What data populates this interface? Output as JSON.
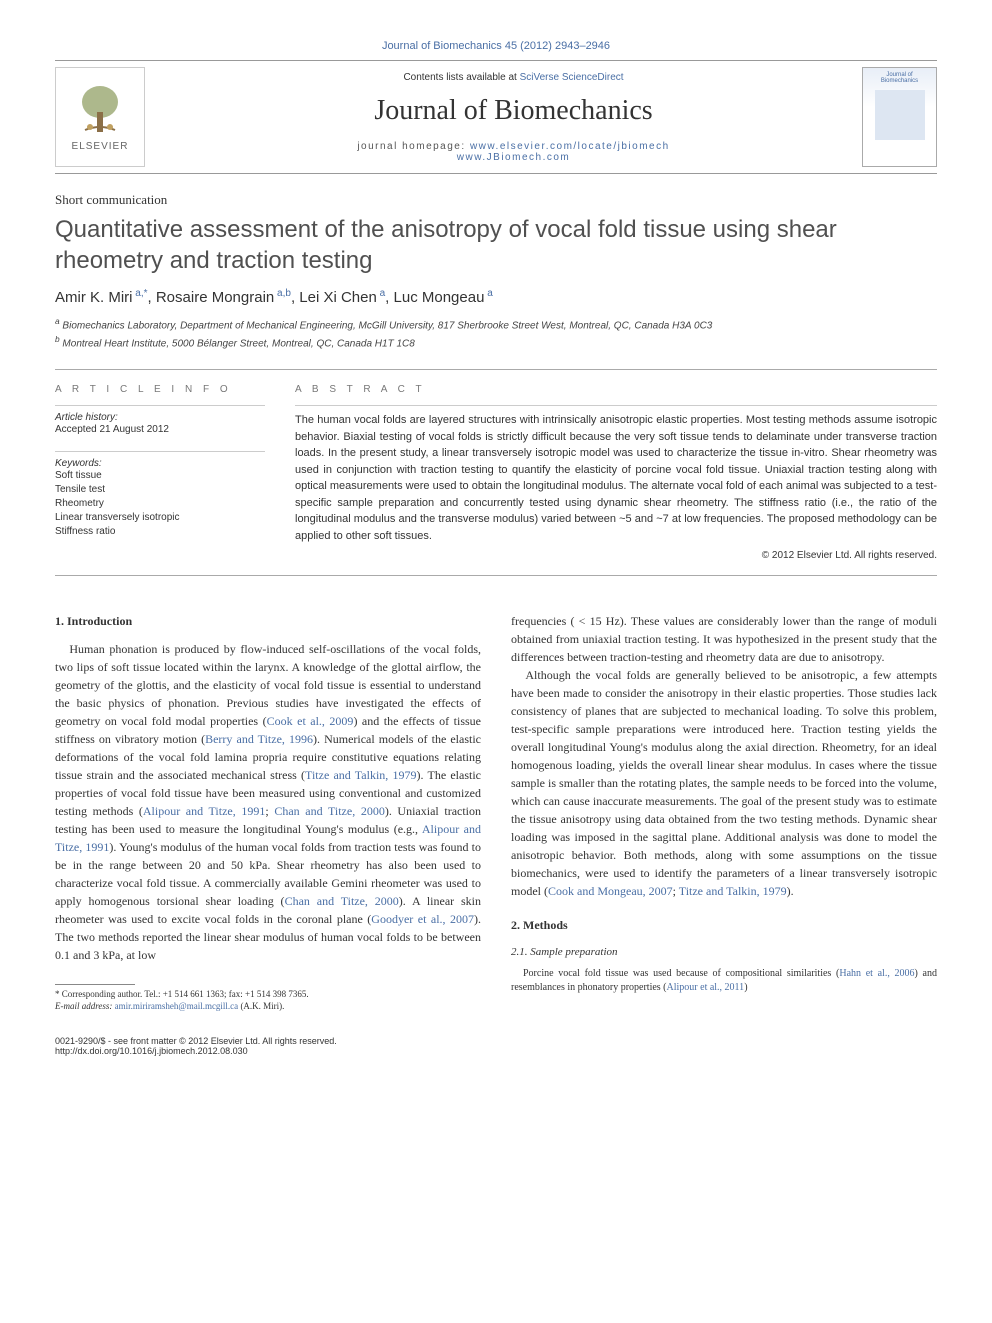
{
  "journal_ref": {
    "prefix": "Journal of Biomechanics 45 (2012) 2943–2946",
    "link_text": "Journal of Biomechanics 45 (2012) 2943–2946"
  },
  "header": {
    "contents_prefix": "Contents lists available at ",
    "contents_link": "SciVerse ScienceDirect",
    "journal_name": "Journal of Biomechanics",
    "homepage_label": "journal homepage: ",
    "homepage_url1": "www.elsevier.com/locate/jbiomech",
    "homepage_url2": "www.JBiomech.com",
    "elsevier_label": "ELSEVIER",
    "cover_title": "Journal of Biomechanics"
  },
  "article": {
    "type": "Short communication",
    "title": "Quantitative assessment of the anisotropy of vocal fold tissue using shear rheometry and traction testing",
    "authors_html": "Amir K. Miri<sup> a,*</sup>, Rosaire Mongrain<sup> a,b</sup>, Lei Xi Chen<sup> a</sup>, Luc Mongeau<sup> a</sup>",
    "affiliations": [
      "Biomechanics Laboratory, Department of Mechanical Engineering, McGill University, 817 Sherbrooke Street West, Montreal, QC, Canada H3A 0C3",
      "Montreal Heart Institute, 5000 Bélanger Street, Montreal, QC, Canada H1T 1C8"
    ]
  },
  "info": {
    "heading": "A R T I C L E  I N F O",
    "history_label": "Article history:",
    "history_text": "Accepted 21 August 2012",
    "keywords_label": "Keywords:",
    "keywords": [
      "Soft tissue",
      "Tensile test",
      "Rheometry",
      "Linear transversely isotropic",
      "Stiffness ratio"
    ]
  },
  "abstract": {
    "heading": "A B S T R A C T",
    "text": "The human vocal folds are layered structures with intrinsically anisotropic elastic properties. Most testing methods assume isotropic behavior. Biaxial testing of vocal folds is strictly difficult because the very soft tissue tends to delaminate under transverse traction loads. In the present study, a linear transversely isotropic model was used to characterize the tissue in-vitro. Shear rheometry was used in conjunction with traction testing to quantify the elasticity of porcine vocal fold tissue. Uniaxial traction testing along with optical measurements were used to obtain the longitudinal modulus. The alternate vocal fold of each animal was subjected to a test-specific sample preparation and concurrently tested using dynamic shear rheometry. The stiffness ratio (i.e., the ratio of the longitudinal modulus and the transverse modulus) varied between ~5 and ~7 at low frequencies. The proposed methodology can be applied to other soft tissues.",
    "copyright": "© 2012 Elsevier Ltd. All rights reserved."
  },
  "sections": {
    "s1_heading": "1.  Introduction",
    "s1_p1a": "Human phonation is produced by flow-induced self-oscillations of the vocal folds, two lips of soft tissue located within the larynx. A knowledge of the glottal airflow, the geometry of the glottis, and the elasticity of vocal fold tissue is essential to understand the basic physics of phonation. Previous studies have investigated the effects of geometry on vocal fold modal properties (",
    "s1_c1": "Cook et al., 2009",
    "s1_p1b": ") and the effects of tissue stiffness on vibratory motion (",
    "s1_c2": "Berry and Titze, 1996",
    "s1_p1c": "). Numerical models of the elastic deformations of the vocal fold lamina propria require constitutive equations relating tissue strain and the associated mechanical stress (",
    "s1_c3": "Titze and Talkin, 1979",
    "s1_p1d": "). The elastic properties of vocal fold tissue have been measured using conventional and customized testing methods (",
    "s1_c4": "Alipour and Titze, 1991",
    "s1_p1e": "; ",
    "s1_c5": "Chan and Titze, 2000",
    "s1_p1f": "). Uniaxial traction testing has been used to measure the longitudinal Young's modulus (e.g., ",
    "s1_c6": "Alipour and Titze, 1991",
    "s1_p1g": "). Young's modulus of the human vocal folds from traction tests was found to be in the range between 20 and 50 kPa. Shear rheometry has also been used to characterize vocal fold tissue. A commercially available Gemini rheometer was used to apply homogenous torsional shear loading (",
    "s1_c7": "Chan and Titze, 2000",
    "s1_p1h": "). A linear skin rheometer was used to excite vocal folds in the coronal plane (",
    "s1_c8": "Goodyer et al., 2007",
    "s1_p1i": "). The two methods reported the linear shear modulus of human vocal folds to be between 0.1 and 3 kPa, at low ",
    "s1_p2": "frequencies ( < 15 Hz). These values are considerably lower than the range of moduli obtained from uniaxial traction testing. It was hypothesized in the present study that the differences between traction-testing and rheometry data are due to anisotropy.",
    "s1_p3a": "Although the vocal folds are generally believed to be anisotropic, a few attempts have been made to consider the anisotropy in their elastic properties. Those studies lack consistency of planes that are subjected to mechanical loading. To solve this problem, test-specific sample preparations were introduced here. Traction testing yields the overall longitudinal Young's modulus along the axial direction. Rheometry, for an ideal homogenous loading, yields the overall linear shear modulus. In cases where the tissue sample is smaller than the rotating plates, the sample needs to be forced into the volume, which can cause inaccurate measurements. The goal of the present study was to estimate the tissue anisotropy using data obtained from the two testing methods. Dynamic shear loading was imposed in the sagittal plane. Additional analysis was done to model the anisotropic behavior. Both methods, along with some assumptions on the tissue biomechanics, were used to identify the parameters of a linear transversely isotropic model (",
    "s1_c9": "Cook and Mongeau, 2007",
    "s1_p3b": "; ",
    "s1_c10": "Titze and Talkin, 1979",
    "s1_p3c": ").",
    "s2_heading": "2.  Methods",
    "s2_1_heading": "2.1.  Sample preparation",
    "s2_1_p1a": "Porcine vocal fold tissue was used because of compositional similarities (",
    "s2_1_c1": "Hahn et al., 2006",
    "s2_1_p1b": ") and resemblances in phonatory properties (",
    "s2_1_c2": "Alipour et al., 2011",
    "s2_1_p1c": ") "
  },
  "footnote": {
    "corr_label": "* Corresponding author. Tel.: +1 514 661 1363; fax: +1 514 398 7365.",
    "email_label": "E-mail address:",
    "email": "amir.miriramsheh@mail.mcgill.ca",
    "email_name": "(A.K. Miri)."
  },
  "footer": {
    "issn": "0021-9290/$ - see front matter © 2012 Elsevier Ltd. All rights reserved.",
    "doi": "http://dx.doi.org/10.1016/j.jbiomech.2012.08.030"
  },
  "colors": {
    "link": "#4a6fa5",
    "text": "#333333",
    "rule": "#aaaaaa",
    "elsevier_orange": "#ff8a00"
  }
}
